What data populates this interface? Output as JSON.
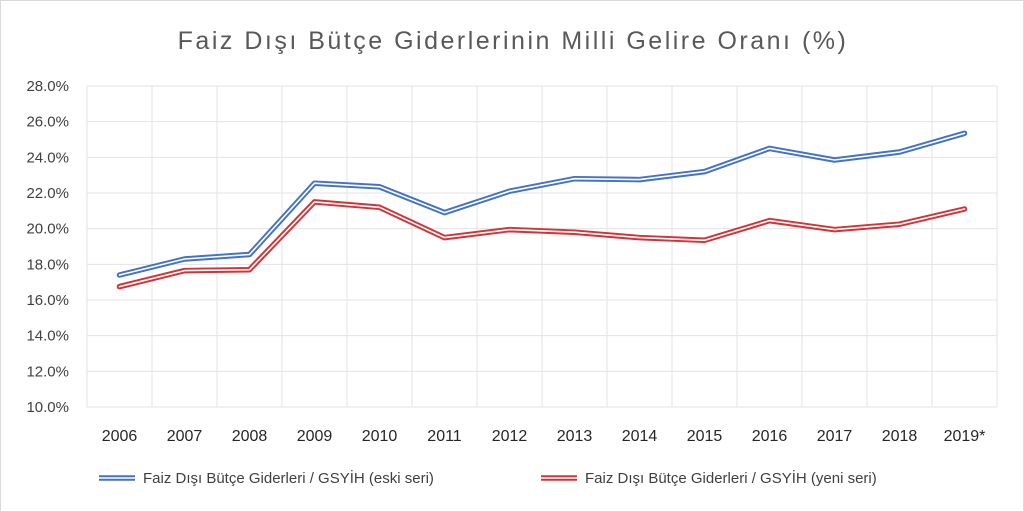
{
  "chart_data": {
    "type": "line",
    "title": "Faiz Dışı Bütçe Giderlerinin Milli Gelire Oranı (%)",
    "xlabel": "",
    "ylabel": "",
    "categories": [
      "2006",
      "2007",
      "2008",
      "2009",
      "2010",
      "2011",
      "2012",
      "2013",
      "2014",
      "2015",
      "2016",
      "2017",
      "2018",
      "2019*"
    ],
    "ylim": [
      10,
      28
    ],
    "yticks": [
      "10.0%",
      "12.0%",
      "14.0%",
      "16.0%",
      "18.0%",
      "20.0%",
      "22.0%",
      "24.0%",
      "26.0%",
      "28.0%"
    ],
    "grid": true,
    "legend_position": "bottom",
    "series": [
      {
        "name": "Faiz Dışı Bütçe Giderleri / GSYİH (eski seri)",
        "color": "#4472c4",
        "values": [
          17.4,
          18.3,
          18.55,
          22.55,
          22.35,
          20.9,
          22.1,
          22.8,
          22.75,
          23.2,
          24.5,
          23.85,
          24.3,
          25.35
        ]
      },
      {
        "name": "Faiz Dışı Bütçe Giderleri / GSYİH (yeni seri)",
        "color": "#d13438",
        "values": [
          16.75,
          17.65,
          17.7,
          21.5,
          21.2,
          19.5,
          19.95,
          19.8,
          19.5,
          19.35,
          20.45,
          19.95,
          20.25,
          21.1
        ]
      }
    ]
  }
}
